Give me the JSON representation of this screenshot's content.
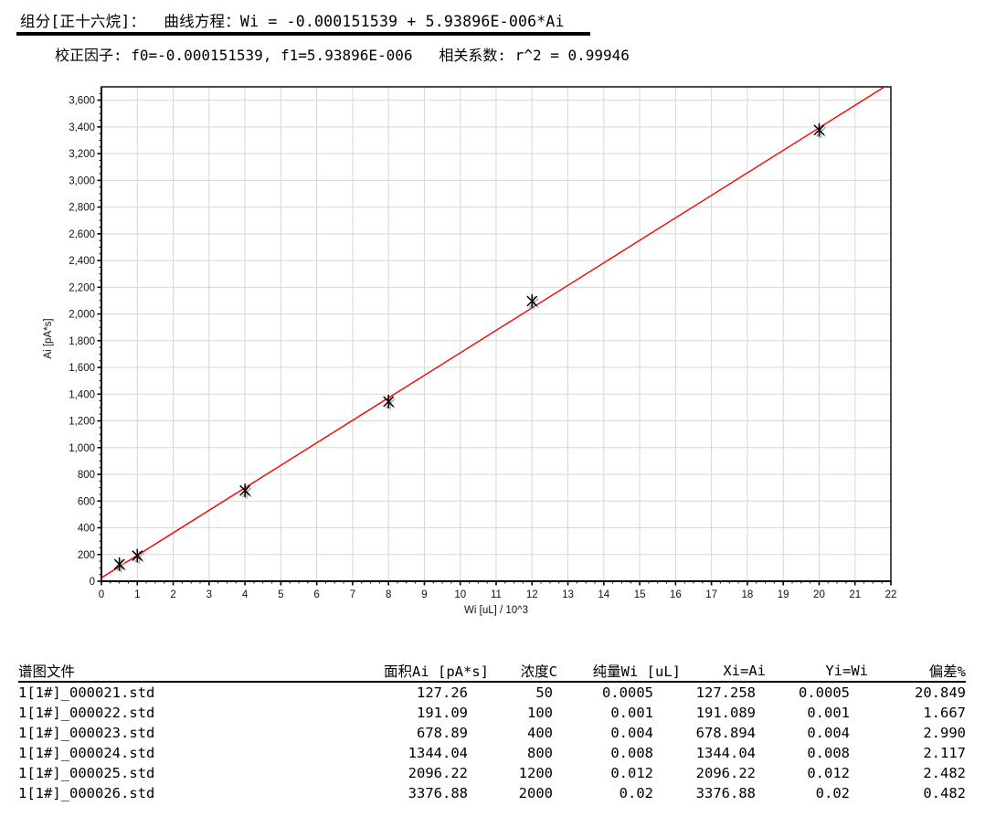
{
  "header": {
    "title_line": "组分[正十六烷]：  曲线方程：Wi = -0.000151539 + 5.93896E-006*Ai",
    "calib_line": "校正因子: f0=-0.000151539, f1=5.93896E-006   相关系数: r^2 = 0.99946",
    "component": "正十六烷",
    "f0": "-0.000151539",
    "f1": "5.93896E-006",
    "r_squared": "0.99946"
  },
  "chart_data": {
    "type": "scatter",
    "title": "",
    "xlabel": "Wi [uL] / 10^3",
    "ylabel": "Ai [pA*s]",
    "xlim": [
      0,
      22
    ],
    "ylim": [
      0,
      3700
    ],
    "x_major_step": 1,
    "x_minor_step": 0.25,
    "y_major_step": 200,
    "y_minor_step": 50,
    "grid": true,
    "legend": "none",
    "points": {
      "x": [
        0.5,
        1,
        4,
        8,
        12,
        20
      ],
      "y": [
        127.26,
        191.09,
        678.89,
        1344.04,
        2096.22,
        3376.88
      ]
    },
    "fit_line": {
      "intercept": 25.52,
      "slope": 168.38
    },
    "colors": {
      "fit_line": "#ff0000",
      "grid": "#d7d7d7",
      "border": "#000000",
      "marker": "#000000",
      "marker_shadow": "#9c9c9c"
    }
  },
  "table": {
    "columns": [
      "谱图文件",
      "面积Ai [pA*s]",
      "浓度C",
      "纯量Wi [uL]",
      "Xi=Ai",
      "Yi=Wi",
      "偏差%"
    ],
    "rows": [
      [
        "1[1#]_000021.std",
        "127.26",
        "50",
        "0.0005",
        "127.258",
        "0.0005",
        "20.849"
      ],
      [
        "1[1#]_000022.std",
        "191.09",
        "100",
        "0.001",
        "191.089",
        "0.001",
        "1.667"
      ],
      [
        "1[1#]_000023.std",
        "678.89",
        "400",
        "0.004",
        "678.894",
        "0.004",
        "2.990"
      ],
      [
        "1[1#]_000024.std",
        "1344.04",
        "800",
        "0.008",
        "1344.04",
        "0.008",
        "2.117"
      ],
      [
        "1[1#]_000025.std",
        "2096.22",
        "1200",
        "0.012",
        "2096.22",
        "0.012",
        "2.482"
      ],
      [
        "1[1#]_000026.std",
        "3376.88",
        "2000",
        "0.02",
        "3376.88",
        "0.02",
        "0.482"
      ]
    ]
  }
}
